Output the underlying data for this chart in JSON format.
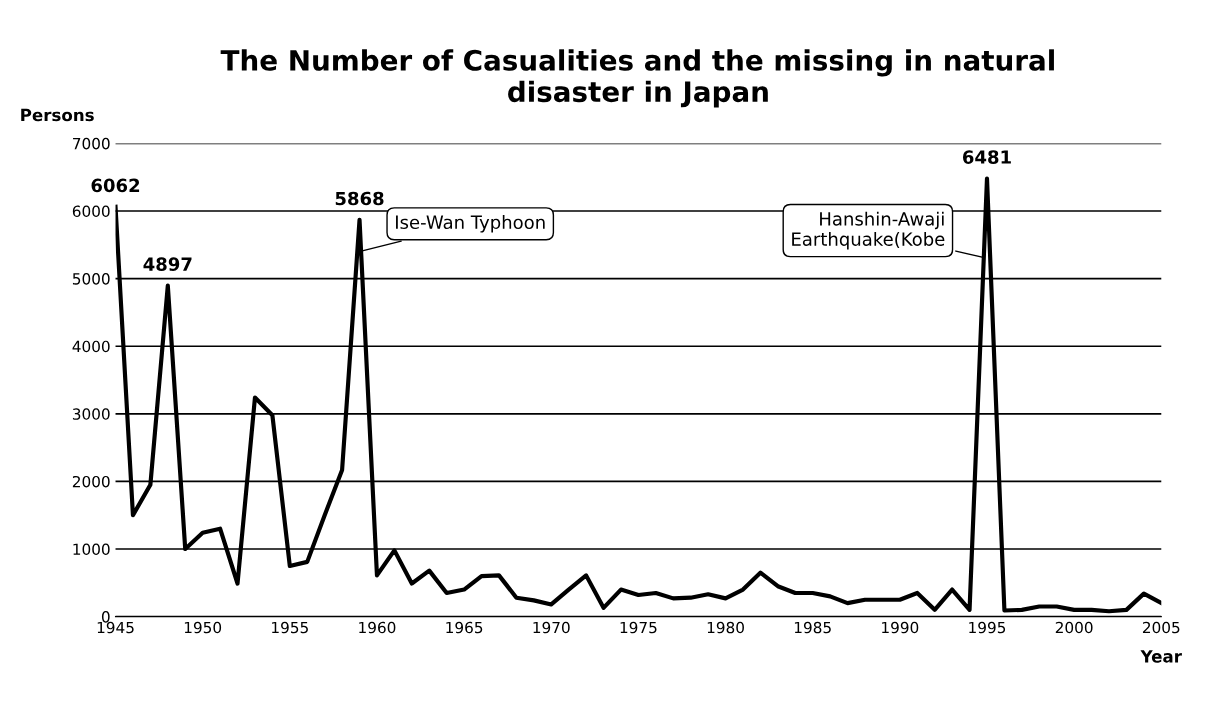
{
  "chart_data": {
    "type": "line",
    "title": "The Number of Casualities and the missing in natural\ndisaster in Japan",
    "xlabel": "Year",
    "ylabel": "Persons",
    "x": [
      1945,
      1946,
      1947,
      1948,
      1949,
      1950,
      1951,
      1952,
      1953,
      1954,
      1955,
      1956,
      1957,
      1958,
      1959,
      1960,
      1961,
      1962,
      1963,
      1964,
      1965,
      1966,
      1967,
      1968,
      1969,
      1970,
      1971,
      1972,
      1973,
      1974,
      1975,
      1976,
      1977,
      1978,
      1979,
      1980,
      1981,
      1982,
      1983,
      1984,
      1985,
      1986,
      1987,
      1988,
      1989,
      1990,
      1991,
      1992,
      1993,
      1994,
      1995,
      1996,
      1997,
      1998,
      1999,
      2000,
      2001,
      2002,
      2003,
      2004,
      2005
    ],
    "series": [
      {
        "color": "#000000",
        "values": [
          6062,
          1500,
          1950,
          4897,
          1000,
          1240,
          1300,
          490,
          3240,
          2980,
          750,
          810,
          1500,
          2170,
          5868,
          610,
          980,
          490,
          680,
          350,
          400,
          600,
          610,
          280,
          240,
          180,
          400,
          610,
          130,
          400,
          320,
          350,
          270,
          280,
          330,
          270,
          400,
          650,
          450,
          350,
          350,
          300,
          200,
          250,
          250,
          250,
          350,
          100,
          400,
          100,
          6481,
          90,
          100,
          150,
          150,
          100,
          100,
          80,
          100,
          340,
          200
        ],
        "value_labels": [
          "6062",
          null,
          null,
          "4897",
          null,
          null,
          null,
          null,
          null,
          null,
          null,
          null,
          null,
          null,
          "5868",
          null,
          null,
          null,
          null,
          null,
          null,
          null,
          null,
          null,
          null,
          null,
          null,
          null,
          null,
          null,
          null,
          null,
          null,
          null,
          null,
          null,
          null,
          null,
          null,
          null,
          null,
          null,
          null,
          null,
          null,
          null,
          null,
          null,
          null,
          null,
          "6481",
          null,
          null,
          null,
          null,
          null,
          null,
          null,
          null,
          null,
          null
        ]
      }
    ],
    "annotations": [
      {
        "text": "Ise-Wan Typhoon",
        "x": 1959,
        "y": 5400
      },
      {
        "text": "Hanshin-Awaji\nEarthquake(Kobe",
        "x": 1995,
        "y": 5300
      }
    ],
    "xlim": [
      1945,
      2005
    ],
    "xticks": [
      1945,
      1950,
      1955,
      1960,
      1965,
      1970,
      1975,
      1980,
      1985,
      1990,
      1995,
      2000,
      2005
    ],
    "ylim": [
      0,
      7000
    ],
    "yticks": [
      0,
      1000,
      2000,
      3000,
      4000,
      5000,
      6000,
      7000
    ],
    "grid": "y",
    "legend": false,
    "marker": "none",
    "line_style": "solid"
  }
}
